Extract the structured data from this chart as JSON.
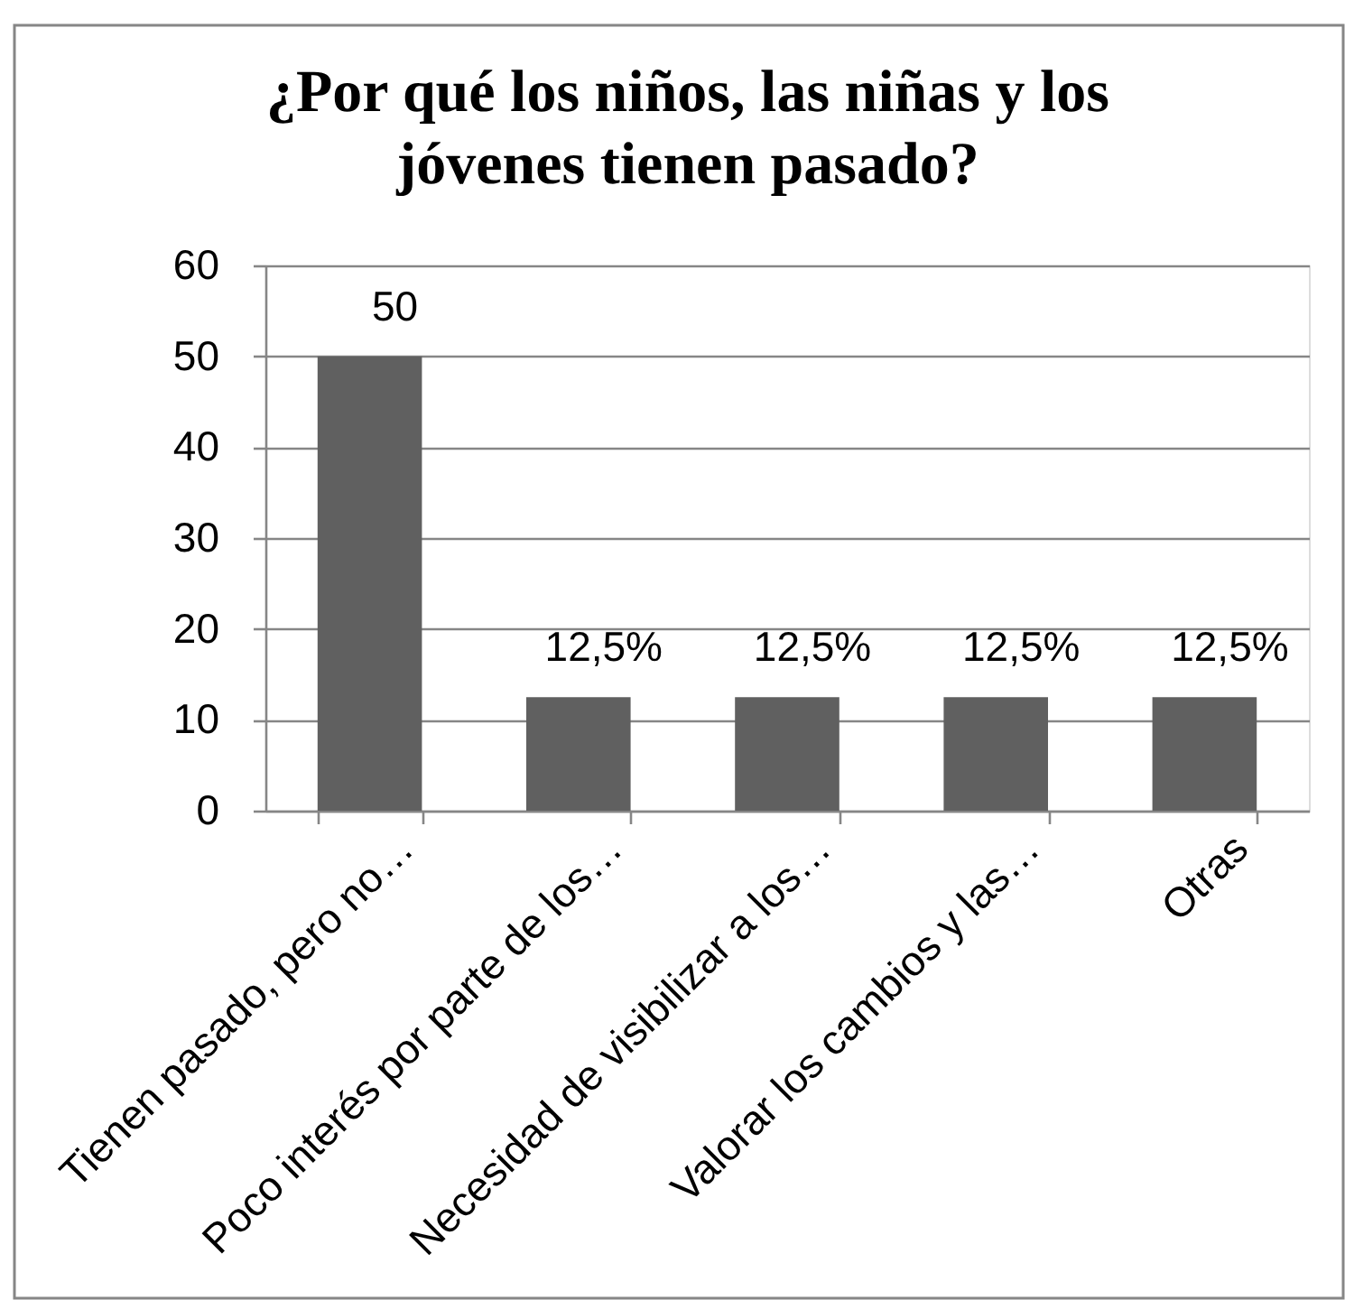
{
  "chart_data": {
    "type": "bar",
    "title": "¿Por qué los niños, las niñas y los jóvenes tienen pasado?",
    "categories": [
      "Tienen pasado, pero no…",
      "Poco interés por parte de los…",
      "Necesidad de visibilizar a los…",
      "Valorar los cambios y las…",
      "Otras"
    ],
    "values": [
      50,
      12.5,
      12.5,
      12.5,
      12.5
    ],
    "color": "#606060",
    "value_labels": [
      "50",
      "12,5%",
      "12,5%",
      "12,5%",
      "12,5%"
    ],
    "ylim": [
      0,
      60
    ],
    "yticks": [
      0,
      10,
      20,
      30,
      40,
      50,
      60
    ],
    "grid": "y"
  }
}
